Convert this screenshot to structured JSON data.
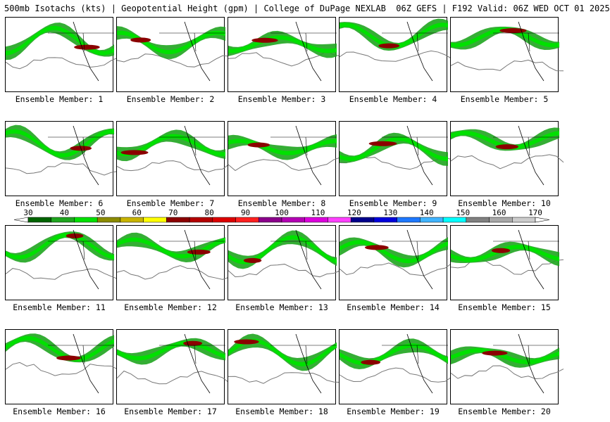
{
  "header": {
    "title": "500mb Isotachs (kts) | Geopotential Height (gpm) | College of DuPage NEXLAB  06Z GEFS | F192 Valid: 06Z WED OCT 01 2025"
  },
  "panel_label_prefix": "Ensemble Member: ",
  "members": [
    "1",
    "2",
    "3",
    "4",
    "5",
    "6",
    "7",
    "8",
    "9",
    "10",
    "11",
    "12",
    "13",
    "14",
    "15",
    "16",
    "17",
    "18",
    "19",
    "20"
  ],
  "colorbar": {
    "ticks": [
      "30",
      "40",
      "50",
      "60",
      "70",
      "80",
      "90",
      "100",
      "110",
      "120",
      "130",
      "140",
      "150",
      "160",
      "170"
    ],
    "colors": [
      "#006400",
      "#1fa51f",
      "#00e000",
      "#8b8b00",
      "#c8b400",
      "#ffff00",
      "#8b0000",
      "#b40000",
      "#dc0000",
      "#ff2020",
      "#8b008b",
      "#b400b4",
      "#dc00dc",
      "#ff40ff",
      "#00008b",
      "#0000dc",
      "#1e78ff",
      "#40b4ff",
      "#00ffff",
      "#808080",
      "#a8a8a8",
      "#cccccc"
    ]
  },
  "map_colors": {
    "low": "#1fa51f",
    "mid": "#00e000",
    "high": "#8b0000",
    "contour": "#777777",
    "border": "#000000"
  }
}
